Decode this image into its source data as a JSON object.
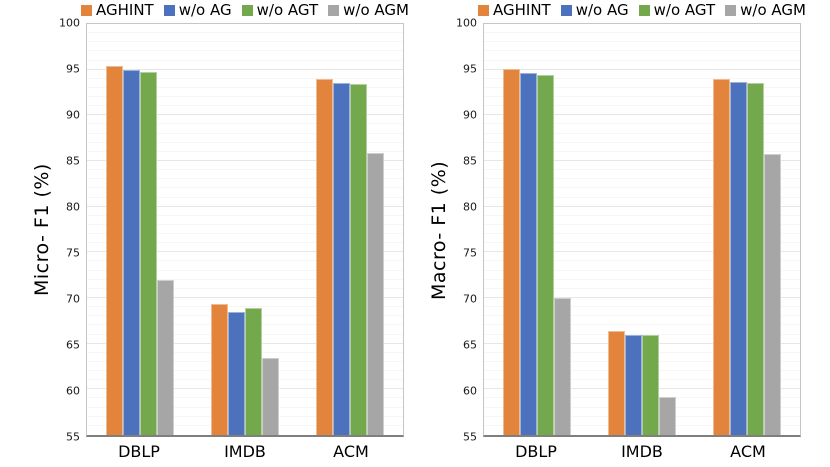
{
  "page": {
    "background": "#ffffff"
  },
  "legend": {
    "position": "top",
    "items": [
      {
        "label": "AGHINT",
        "color": "#E2843B"
      },
      {
        "label": "w/o AG",
        "color": "#4C72BE"
      },
      {
        "label": "w/o AGT",
        "color": "#73A84D"
      },
      {
        "label": "w/o AGM",
        "color": "#A6A6A6"
      }
    ]
  },
  "chart_data": [
    {
      "type": "bar",
      "title": "",
      "ylabel": "Micro- F1 (%)",
      "xlabel": "",
      "ylim": [
        55,
        100
      ],
      "yticks": [
        55,
        60,
        65,
        70,
        75,
        80,
        85,
        90,
        95,
        100
      ],
      "grid": "horizontal, minor every 1, major every 5",
      "legend_position": "top",
      "categories": [
        "DBLP",
        "IMDB",
        "ACM"
      ],
      "series": [
        {
          "name": "AGHINT",
          "color": "#E2843B",
          "values": [
            95.4,
            69.3,
            94.0
          ]
        },
        {
          "name": "w/o AG",
          "color": "#4C72BE",
          "values": [
            95.0,
            68.5,
            93.5
          ]
        },
        {
          "name": "w/o AGT",
          "color": "#73A84D",
          "values": [
            94.7,
            68.9,
            93.4
          ]
        },
        {
          "name": "w/o AGM",
          "color": "#A6A6A6",
          "values": [
            72.0,
            63.4,
            85.9
          ]
        }
      ]
    },
    {
      "type": "bar",
      "title": "",
      "ylabel": "Macro- F1 (%)",
      "xlabel": "",
      "ylim": [
        55,
        100
      ],
      "yticks": [
        55,
        60,
        65,
        70,
        75,
        80,
        85,
        90,
        95,
        100
      ],
      "grid": "horizontal, minor every 1, major every 5",
      "legend_position": "top",
      "categories": [
        "DBLP",
        "IMDB",
        "ACM"
      ],
      "series": [
        {
          "name": "AGHINT",
          "color": "#E2843B",
          "values": [
            95.1,
            66.4,
            94.0
          ]
        },
        {
          "name": "w/o AG",
          "color": "#4C72BE",
          "values": [
            94.6,
            65.9,
            93.6
          ]
        },
        {
          "name": "w/o AGT",
          "color": "#73A84D",
          "values": [
            94.4,
            65.9,
            93.5
          ]
        },
        {
          "name": "w/o AGM",
          "color": "#A6A6A6",
          "values": [
            70.0,
            59.2,
            85.8
          ]
        }
      ]
    }
  ]
}
